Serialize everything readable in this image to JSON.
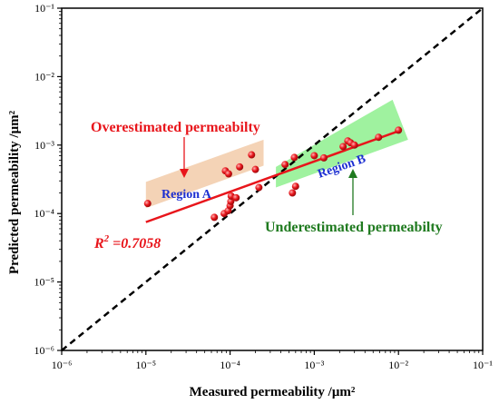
{
  "chart_data": {
    "type": "scatter",
    "xlabel": "Measured permeability /μm²",
    "ylabel": "Predicted permeability /μm²",
    "x_scale": "log",
    "y_scale": "log",
    "xlim": [
      1e-06,
      0.1
    ],
    "ylim": [
      1e-06,
      0.1
    ],
    "x_ticks": [
      "10⁻⁶",
      "10⁻⁵",
      "10⁻⁴",
      "10⁻³",
      "10⁻²",
      "10⁻¹"
    ],
    "y_ticks": [
      "10⁻⁶",
      "10⁻⁵",
      "10⁻⁴",
      "10⁻³",
      "10⁻²",
      "10⁻¹"
    ],
    "grid": false,
    "points": [
      {
        "x": 1.05e-05,
        "y": 0.00014
      },
      {
        "x": 6.5e-05,
        "y": 8.8e-05
      },
      {
        "x": 8.5e-05,
        "y": 0.0001
      },
      {
        "x": 9.5e-05,
        "y": 0.00011
      },
      {
        "x": 0.0001,
        "y": 0.00013
      },
      {
        "x": 0.000102,
        "y": 0.00015
      },
      {
        "x": 0.000103,
        "y": 0.00018
      },
      {
        "x": 0.000118,
        "y": 0.00017
      },
      {
        "x": 8.8e-05,
        "y": 0.00042
      },
      {
        "x": 9.6e-05,
        "y": 0.00038
      },
      {
        "x": 0.00013,
        "y": 0.00048
      },
      {
        "x": 0.00018,
        "y": 0.00072
      },
      {
        "x": 0.0002,
        "y": 0.00044
      },
      {
        "x": 0.00022,
        "y": 0.00024
      },
      {
        "x": 0.00045,
        "y": 0.00052
      },
      {
        "x": 0.00055,
        "y": 0.0002
      },
      {
        "x": 0.0006,
        "y": 0.00025
      },
      {
        "x": 0.00058,
        "y": 0.00066
      },
      {
        "x": 0.001,
        "y": 0.0007
      },
      {
        "x": 0.0013,
        "y": 0.00065
      },
      {
        "x": 0.0022,
        "y": 0.00095
      },
      {
        "x": 0.0025,
        "y": 0.00115
      },
      {
        "x": 0.0027,
        "y": 0.00108
      },
      {
        "x": 0.003,
        "y": 0.001
      },
      {
        "x": 0.0058,
        "y": 0.0013
      },
      {
        "x": 0.01,
        "y": 0.00165
      }
    ],
    "fit_line": {
      "x": [
        1e-05,
        0.01
      ],
      "y": [
        7.5e-05,
        0.0016
      ]
    },
    "reference_line": {
      "x": [
        1e-06,
        0.1
      ],
      "y": [
        1e-06,
        0.1
      ],
      "style": "dashed"
    },
    "regions": [
      {
        "label": "Region A",
        "color": "#f4d3b6",
        "polygon": [
          [
            1e-05,
            0.00012
          ],
          [
            0.00025,
            0.0005
          ],
          [
            0.00025,
            0.0012
          ],
          [
            1e-05,
            0.00029
          ]
        ]
      },
      {
        "label": "Region B",
        "color": "#9ff29f",
        "polygon": [
          [
            0.00035,
            0.00024
          ],
          [
            0.013,
            0.0012
          ],
          [
            0.0085,
            0.0046
          ],
          [
            0.00035,
            0.00048
          ]
        ]
      }
    ],
    "annotations": {
      "over": "Overestimated permeabilty",
      "under": "Underestimated permeabilty",
      "region_a": "Region A",
      "region_b": "Region B",
      "r2_label": "R",
      "r2_sup": "2",
      "r2_value": " =0.7058"
    },
    "colors": {
      "points": "#e8151b",
      "fit": "#e8151b",
      "reference": "#000000",
      "over_text": "#e8151b",
      "under_text": "#1f7a1f",
      "region_text": "#1c2fd1"
    }
  }
}
